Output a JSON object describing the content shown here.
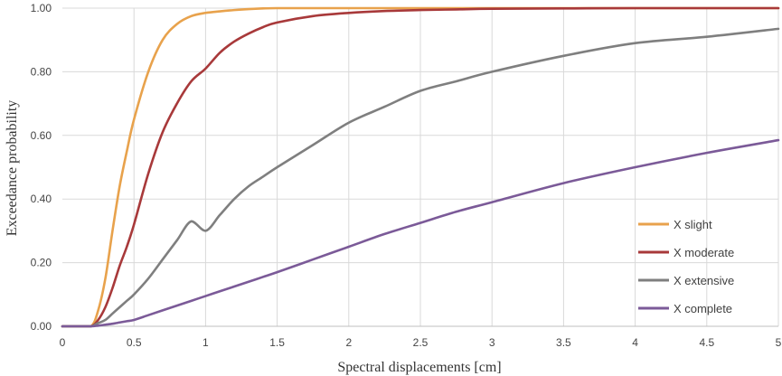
{
  "chart_data": {
    "type": "line",
    "title": "",
    "xlabel": "Spectral displacements [cm]",
    "ylabel": "Exceedance probability",
    "xlim": [
      0,
      5
    ],
    "ylim": [
      0,
      1
    ],
    "x_ticks": [
      "0",
      "0.5",
      "1",
      "1.5",
      "2",
      "2.5",
      "3",
      "3.5",
      "4",
      "4.5",
      "5"
    ],
    "y_ticks": [
      "0.00",
      "0.20",
      "0.40",
      "0.60",
      "0.80",
      "1.00"
    ],
    "grid": true,
    "legend_position": "bottom-right",
    "x": [
      0,
      0.1,
      0.2,
      0.25,
      0.3,
      0.35,
      0.4,
      0.45,
      0.5,
      0.6,
      0.7,
      0.8,
      0.9,
      1,
      1.1,
      1.2,
      1.3,
      1.4,
      1.5,
      1.75,
      2,
      2.25,
      2.5,
      2.75,
      3,
      3.5,
      4,
      4.5,
      5
    ],
    "series": [
      {
        "name": "X slight",
        "color": "#E8A24C",
        "values": [
          0,
          0,
          0,
          0.05,
          0.15,
          0.3,
          0.44,
          0.55,
          0.65,
          0.8,
          0.9,
          0.95,
          0.975,
          0.985,
          0.99,
          0.994,
          0.997,
          0.999,
          1,
          1,
          1,
          1,
          1,
          1,
          1,
          1,
          1,
          1,
          1
        ]
      },
      {
        "name": "X moderate",
        "color": "#A8393A",
        "values": [
          0,
          0,
          0,
          0.02,
          0.06,
          0.12,
          0.19,
          0.25,
          0.32,
          0.48,
          0.61,
          0.7,
          0.77,
          0.81,
          0.86,
          0.895,
          0.92,
          0.94,
          0.955,
          0.975,
          0.985,
          0.991,
          0.994,
          0.996,
          0.998,
          0.999,
          1,
          1,
          1
        ]
      },
      {
        "name": "X extensive",
        "color": "#7F7F7F",
        "values": [
          0,
          0,
          0,
          0.01,
          0.02,
          0.04,
          0.06,
          0.08,
          0.1,
          0.15,
          0.21,
          0.27,
          0.33,
          0.3,
          0.35,
          0.4,
          0.44,
          0.47,
          0.5,
          0.57,
          0.64,
          0.69,
          0.74,
          0.77,
          0.8,
          0.85,
          0.89,
          0.91,
          0.935
        ]
      },
      {
        "name": "X complete",
        "color": "#7B5A98",
        "values": [
          0,
          0,
          0,
          0.002,
          0.005,
          0.008,
          0.012,
          0.016,
          0.02,
          0.035,
          0.05,
          0.065,
          0.08,
          0.095,
          0.11,
          0.125,
          0.14,
          0.155,
          0.17,
          0.21,
          0.25,
          0.29,
          0.325,
          0.36,
          0.39,
          0.45,
          0.5,
          0.545,
          0.585
        ]
      }
    ]
  }
}
